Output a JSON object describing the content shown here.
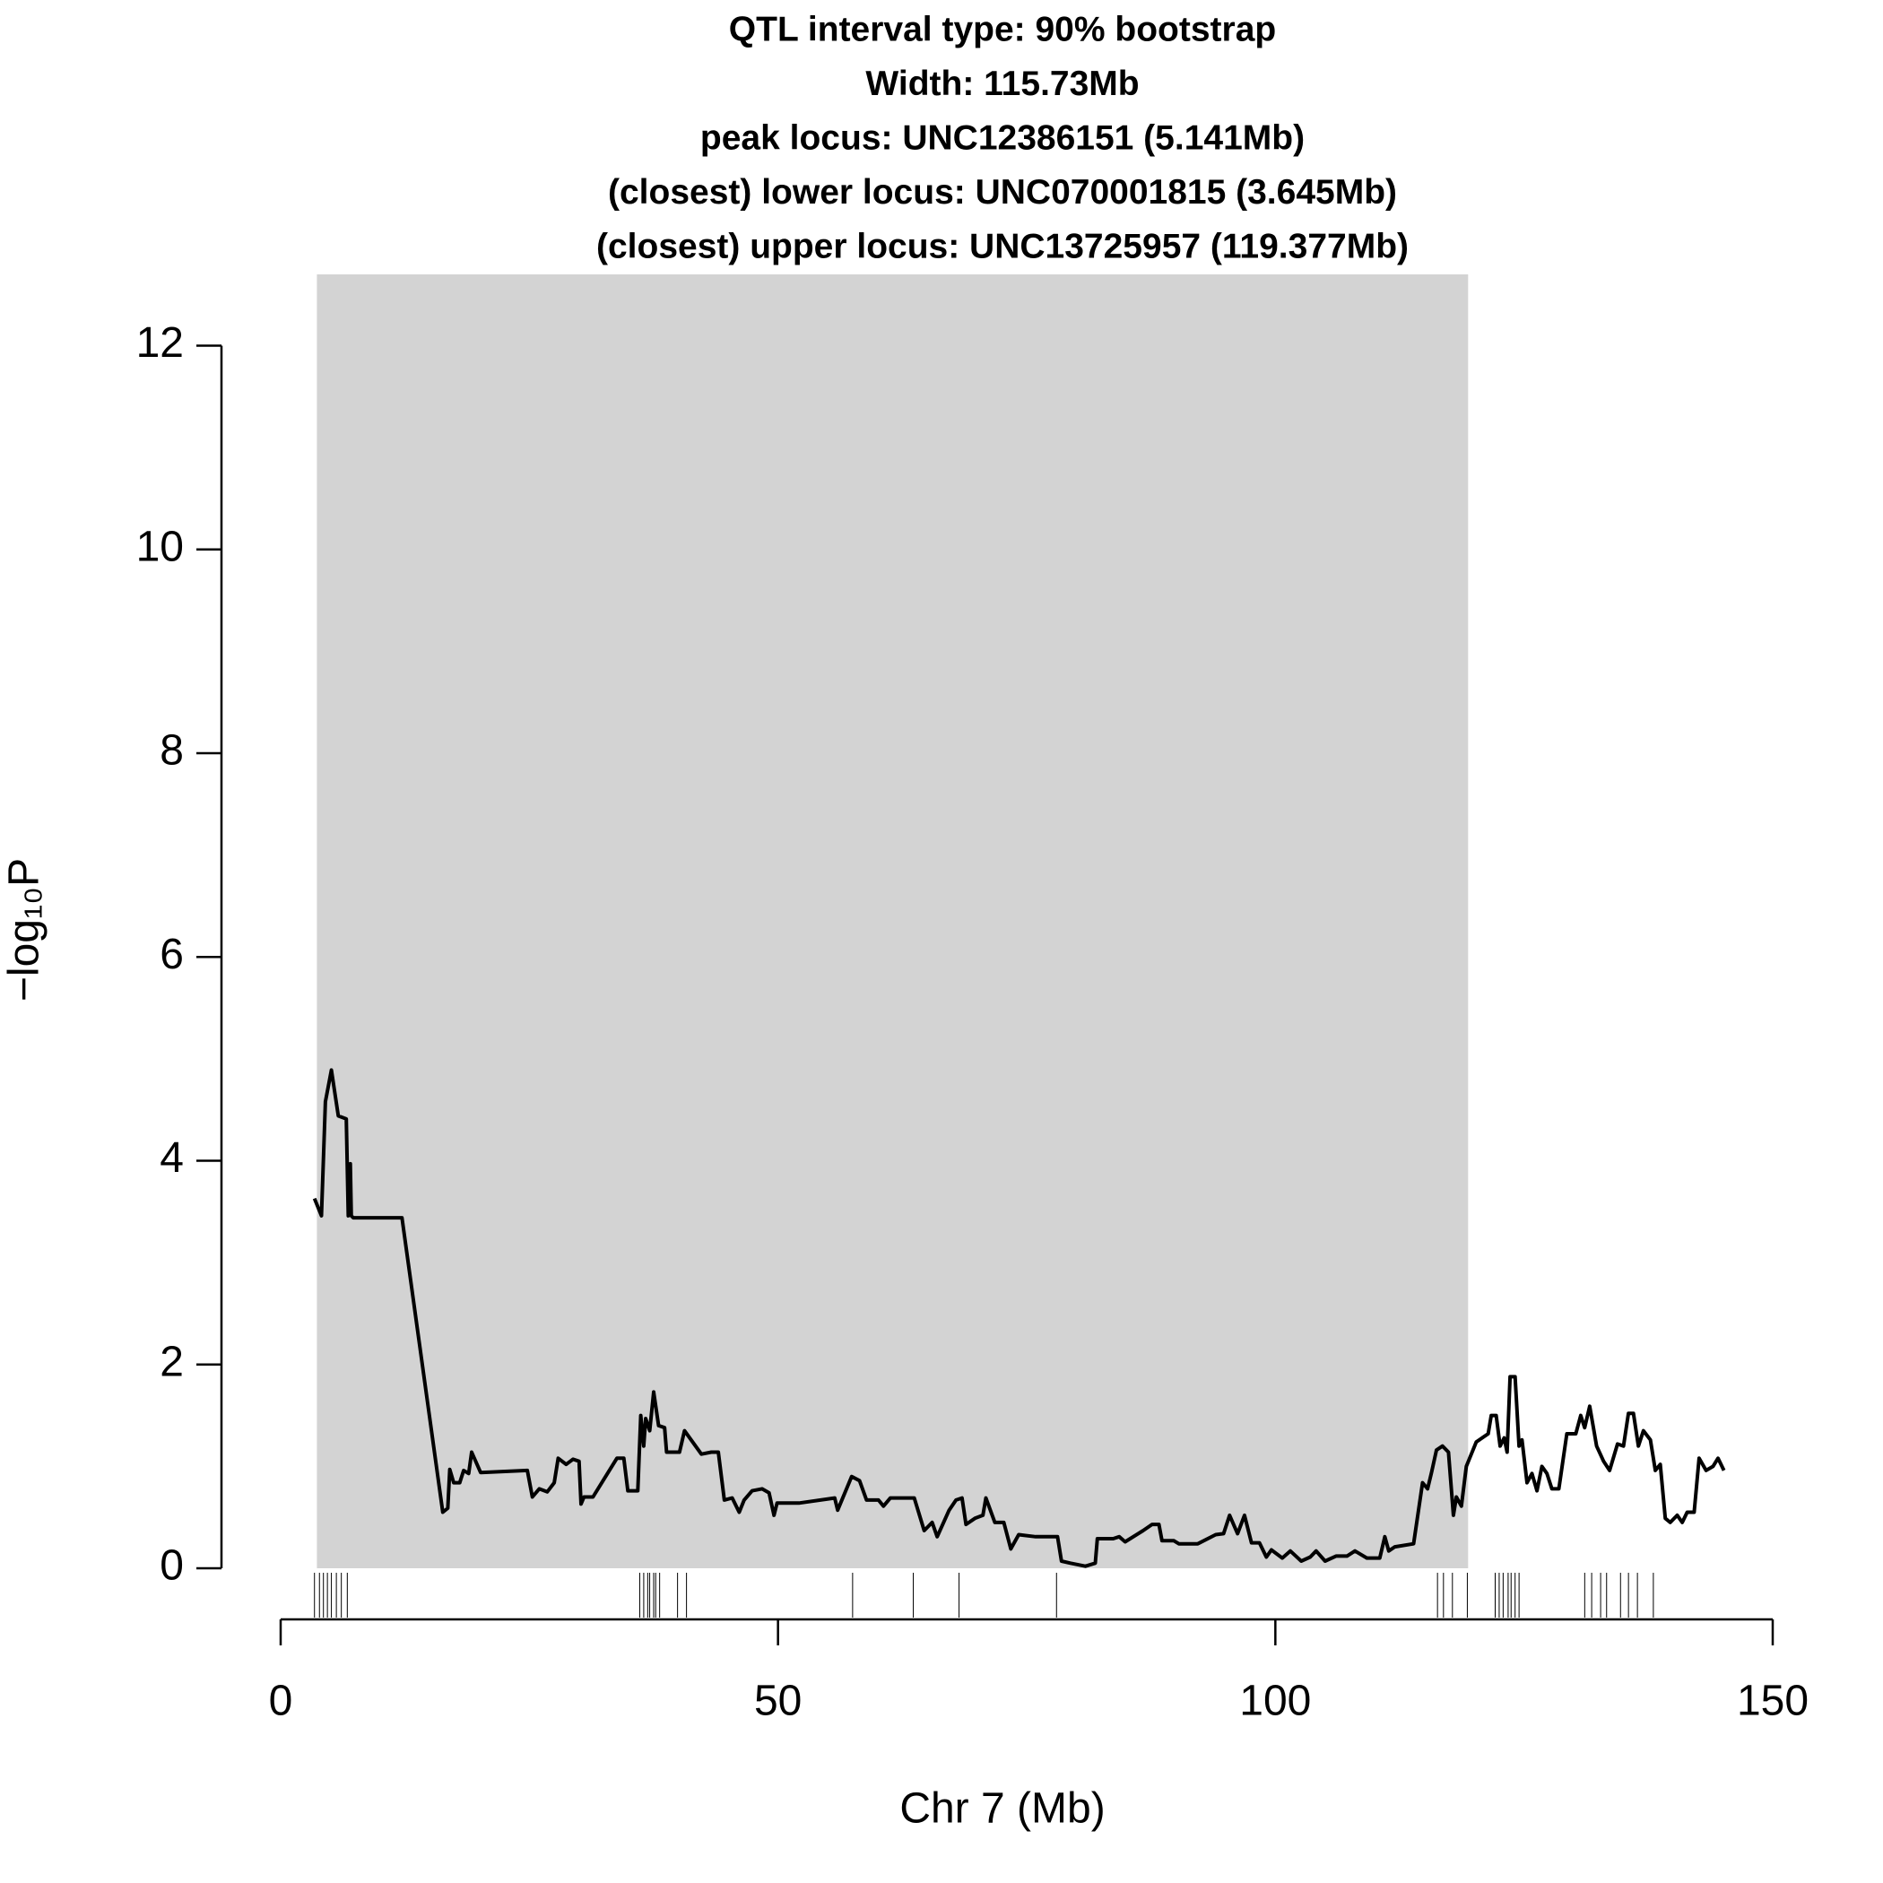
{
  "chart_data": {
    "type": "line",
    "title_lines": [
      "QTL interval type: 90% bootstrap",
      "Width: 115.73Mb",
      "peak locus: UNC12386151 (5.141Mb)",
      "(closest) lower locus: UNC070001815 (3.645Mb)",
      "(closest) upper locus: UNC13725957 (119.377Mb)"
    ],
    "x_label": "Chr 7 (Mb)",
    "y_label": "−log₁₀P",
    "xlim": [
      0,
      150
    ],
    "xticks": [
      0,
      50,
      100,
      150
    ],
    "ylim": [
      0,
      12.7
    ],
    "yticks": [
      0,
      2,
      4,
      6,
      8,
      10,
      12
    ],
    "interval": [
      3.645,
      119.377
    ],
    "interval_color": "#d3d3d3",
    "color": "#000000",
    "x": [
      3.4,
      4.1,
      4.5,
      5.1,
      5.8,
      6.6,
      6.8,
      7.0,
      7.1,
      7.3,
      12.2,
      16.3,
      16.8,
      17.0,
      17.4,
      18.0,
      18.4,
      18.9,
      19.2,
      20.1,
      24.8,
      25.3,
      26.0,
      26.8,
      27.5,
      27.9,
      28.7,
      29.4,
      30.0,
      30.2,
      30.5,
      31.4,
      33.8,
      34.5,
      34.9,
      35.9,
      36.2,
      36.5,
      36.7,
      37.1,
      37.5,
      38.0,
      38.6,
      38.8,
      40.1,
      40.6,
      42.3,
      43.3,
      44.0,
      44.6,
      45.4,
      46.1,
      46.6,
      47.4,
      48.4,
      49.1,
      49.6,
      49.9,
      52.1,
      55.7,
      56.0,
      57.4,
      58.2,
      58.9,
      60.1,
      60.6,
      61.3,
      63.7,
      64.7,
      65.5,
      66.0,
      67.2,
      67.9,
      68.5,
      68.9,
      69.8,
      70.6,
      70.9,
      71.8,
      72.7,
      73.4,
      74.2,
      75.9,
      78.1,
      78.5,
      79.4,
      80.9,
      81.9,
      82.1,
      83.7,
      84.3,
      84.9,
      86.7,
      87.6,
      88.3,
      88.6,
      89.8,
      90.3,
      92.2,
      94.0,
      94.8,
      95.4,
      96.2,
      96.9,
      97.6,
      98.4,
      99.1,
      99.6,
      100.7,
      101.5,
      102.6,
      103.5,
      104.1,
      105.0,
      106.1,
      107.2,
      108.0,
      109.2,
      110.5,
      111.0,
      111.4,
      112.0,
      113.9,
      114.8,
      115.3,
      115.7,
      116.2,
      116.8,
      117.4,
      117.9,
      118.2,
      118.7,
      119.2,
      120.2,
      121.4,
      121.7,
      122.2,
      122.6,
      123.0,
      123.3,
      123.6,
      124.1,
      124.5,
      124.8,
      125.3,
      125.8,
      126.3,
      126.8,
      127.3,
      127.8,
      128.5,
      129.3,
      130.2,
      130.7,
      131.1,
      131.6,
      132.3,
      133.0,
      133.6,
      134.4,
      135.0,
      135.5,
      136.0,
      136.5,
      137.0,
      137.7,
      138.2,
      138.7,
      139.2,
      139.7,
      140.4,
      140.9,
      141.4,
      142.1,
      142.6,
      143.3,
      144.0,
      144.5,
      145.1
    ],
    "values": [
      3.63,
      3.46,
      4.58,
      4.89,
      4.44,
      4.41,
      3.46,
      3.97,
      3.46,
      3.44,
      3.44,
      0.55,
      0.59,
      0.97,
      0.84,
      0.84,
      0.96,
      0.93,
      1.14,
      0.94,
      0.96,
      0.7,
      0.78,
      0.75,
      0.84,
      1.08,
      1.02,
      1.07,
      1.05,
      0.63,
      0.7,
      0.7,
      1.08,
      1.08,
      0.76,
      0.76,
      1.5,
      1.2,
      1.47,
      1.35,
      1.73,
      1.4,
      1.38,
      1.14,
      1.14,
      1.35,
      1.12,
      1.14,
      1.14,
      0.67,
      0.69,
      0.55,
      0.67,
      0.76,
      0.78,
      0.74,
      0.52,
      0.64,
      0.64,
      0.69,
      0.57,
      0.9,
      0.86,
      0.67,
      0.67,
      0.61,
      0.69,
      0.69,
      0.37,
      0.45,
      0.31,
      0.57,
      0.67,
      0.69,
      0.43,
      0.49,
      0.52,
      0.69,
      0.45,
      0.45,
      0.19,
      0.33,
      0.31,
      0.31,
      0.07,
      0.05,
      0.02,
      0.05,
      0.29,
      0.29,
      0.31,
      0.26,
      0.37,
      0.43,
      0.43,
      0.27,
      0.27,
      0.24,
      0.24,
      0.33,
      0.34,
      0.52,
      0.34,
      0.52,
      0.25,
      0.25,
      0.11,
      0.18,
      0.1,
      0.17,
      0.07,
      0.11,
      0.17,
      0.07,
      0.12,
      0.12,
      0.17,
      0.1,
      0.1,
      0.31,
      0.17,
      0.21,
      0.24,
      0.84,
      0.78,
      0.94,
      1.16,
      1.2,
      1.14,
      0.52,
      0.7,
      0.61,
      1.0,
      1.24,
      1.32,
      1.5,
      1.5,
      1.2,
      1.28,
      1.14,
      1.88,
      1.88,
      1.2,
      1.26,
      0.84,
      0.93,
      0.76,
      1.0,
      0.93,
      0.78,
      0.78,
      1.32,
      1.32,
      1.5,
      1.38,
      1.59,
      1.2,
      1.05,
      0.96,
      1.22,
      1.2,
      1.52,
      1.52,
      1.2,
      1.35,
      1.26,
      0.96,
      1.02,
      0.49,
      0.45,
      0.52,
      0.45,
      0.55,
      0.55,
      1.08,
      0.96,
      1.0,
      1.08,
      0.96
    ],
    "rug": [
      3.4,
      3.9,
      4.3,
      4.7,
      5.1,
      5.6,
      6.1,
      6.7,
      36.1,
      36.5,
      36.9,
      37.1,
      37.5,
      37.7,
      38.1,
      39.9,
      40.8,
      57.5,
      63.6,
      68.2,
      78.0,
      116.3,
      116.9,
      117.8,
      119.3,
      122.1,
      122.5,
      122.9,
      123.4,
      123.7,
      124.1,
      124.5,
      131.1,
      131.8,
      132.7,
      133.3,
      134.7,
      135.5,
      136.4,
      138.0
    ]
  }
}
